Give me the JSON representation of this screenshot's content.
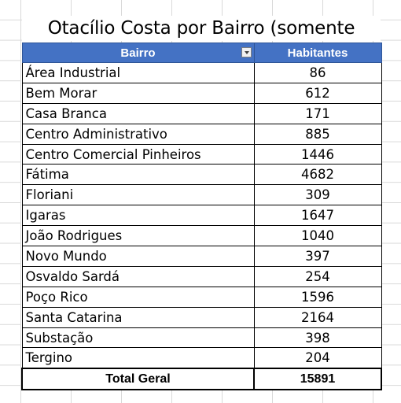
{
  "title": "Otacílio Costa por Bairro (somente urbano)",
  "headers": {
    "bairro": "Bairro",
    "habitantes": "Habitantes"
  },
  "rows": [
    {
      "bairro": "Área Industrial",
      "habitantes": "86"
    },
    {
      "bairro": "Bem Morar",
      "habitantes": "612"
    },
    {
      "bairro": "Casa Branca",
      "habitantes": "171"
    },
    {
      "bairro": "Centro Administrativo",
      "habitantes": "885"
    },
    {
      "bairro": "Centro Comercial Pinheiros",
      "habitantes": "1446"
    },
    {
      "bairro": "Fátima",
      "habitantes": "4682"
    },
    {
      "bairro": "Floriani",
      "habitantes": "309"
    },
    {
      "bairro": "Igaras",
      "habitantes": "1647"
    },
    {
      "bairro": "João Rodrigues",
      "habitantes": "1040"
    },
    {
      "bairro": "Novo Mundo",
      "habitantes": "397"
    },
    {
      "bairro": "Osvaldo Sardá",
      "habitantes": "254"
    },
    {
      "bairro": "Poço Rico",
      "habitantes": "1596"
    },
    {
      "bairro": "Santa Catarina",
      "habitantes": "2164"
    },
    {
      "bairro": "Substação",
      "habitantes": "398"
    },
    {
      "bairro": "Tergino",
      "habitantes": "204"
    }
  ],
  "total": {
    "label": "Total Geral",
    "value": "15891"
  },
  "colors": {
    "header_bg": "#4472c4",
    "header_text": "#ffffff",
    "gridline": "#d9d9d9"
  },
  "icons": {
    "filter": "filter-dropdown-icon"
  }
}
